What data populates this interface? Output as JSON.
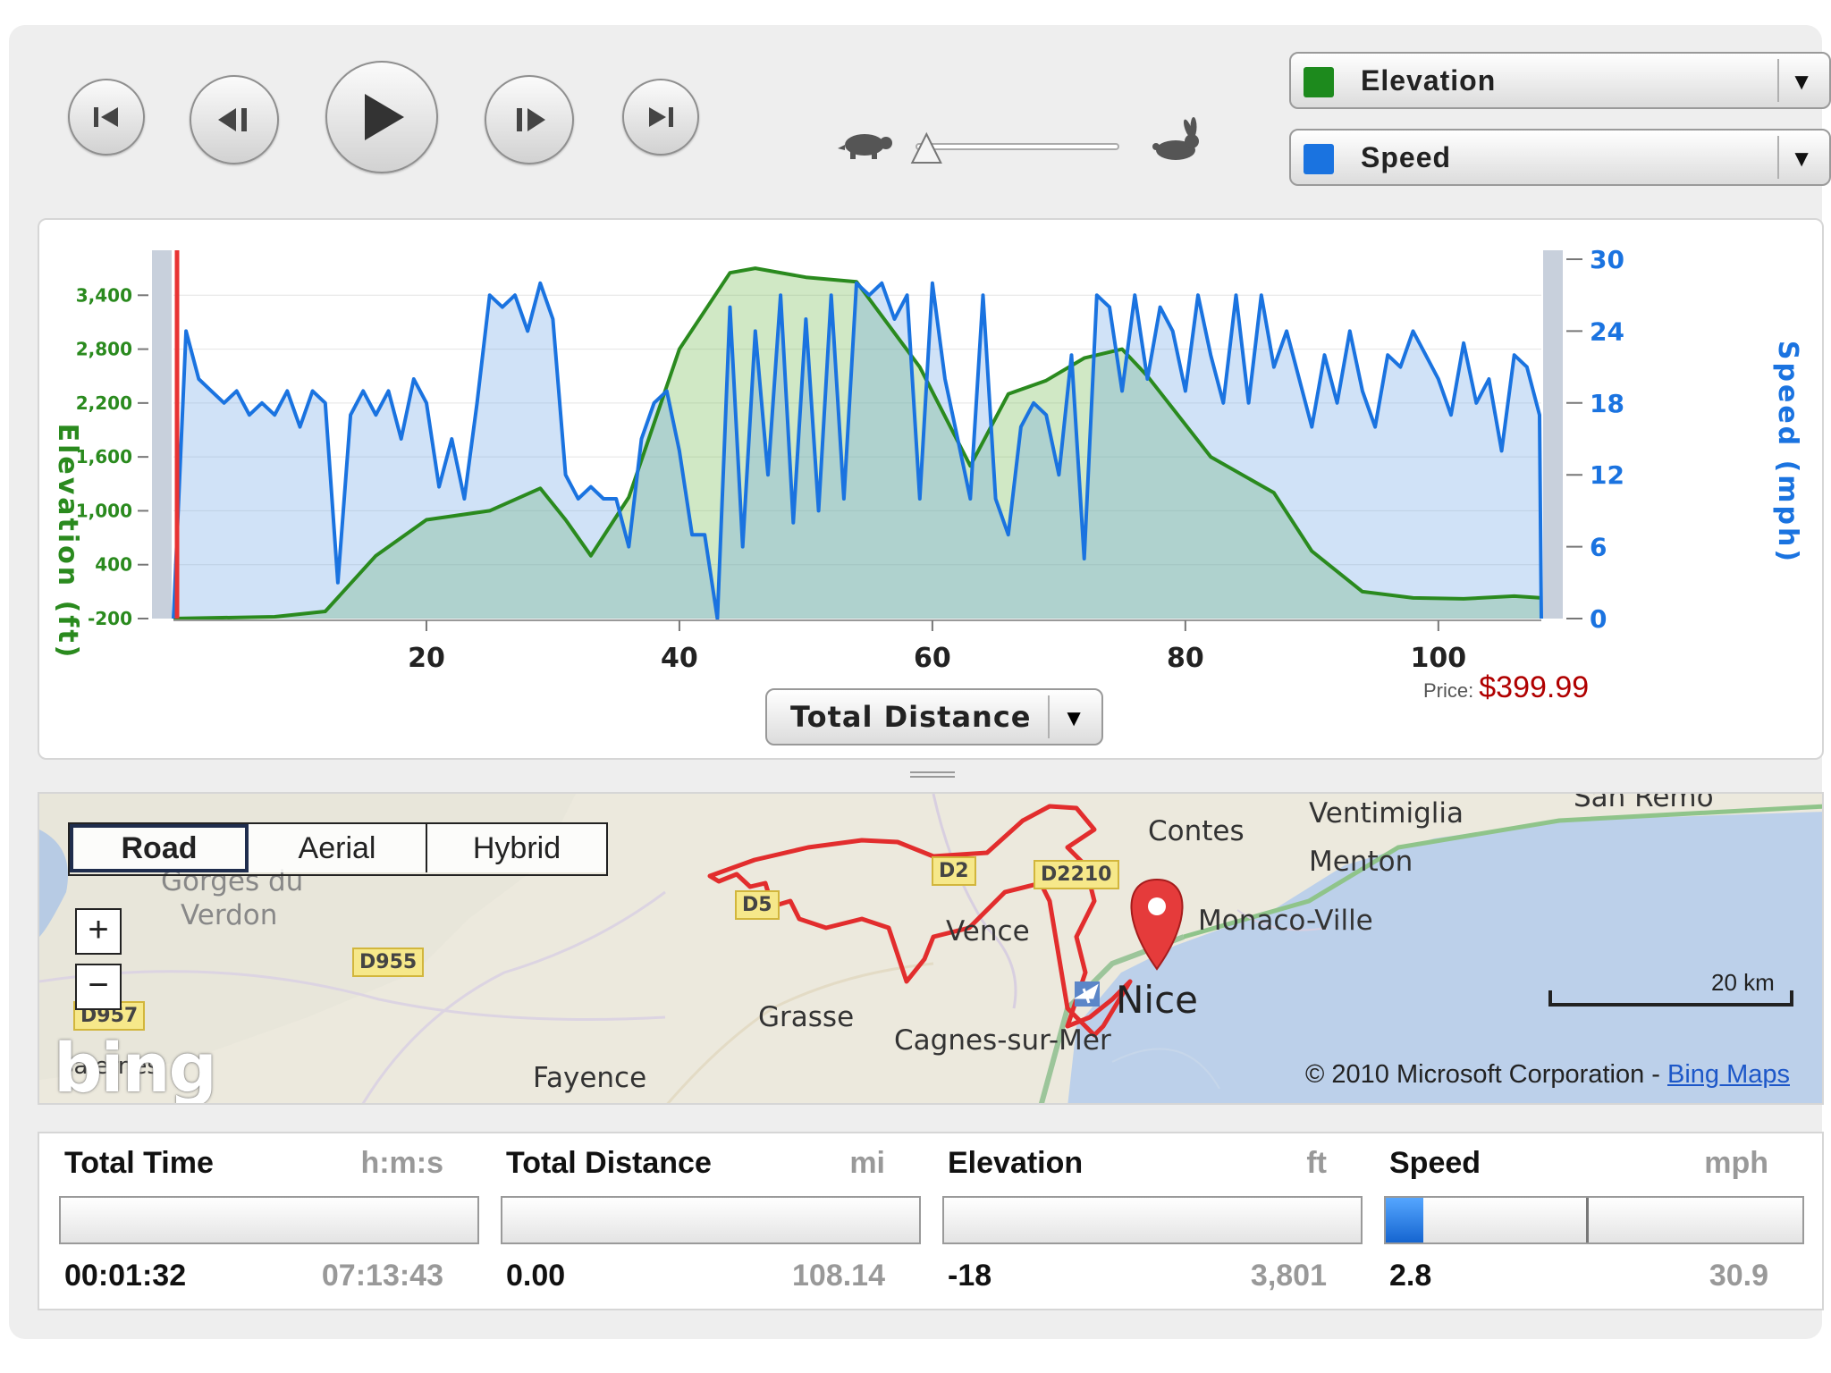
{
  "playback": {
    "buttons": [
      "skip-to-start",
      "step-back",
      "play",
      "step-forward",
      "skip-to-end"
    ],
    "slow_icon": "turtle-icon",
    "fast_icon": "rabbit-icon",
    "speed_level": 0.05
  },
  "series_selectors": [
    {
      "label": "Elevation",
      "color": "#1d8a1d"
    },
    {
      "label": "Speed",
      "color": "#1a73e0"
    }
  ],
  "chart_data": {
    "type": "area",
    "x_axis_label": "Total Distance",
    "x_ticks": [
      20,
      40,
      60,
      80,
      100
    ],
    "xlim": [
      0,
      108.14
    ],
    "left_axis": {
      "label": "Elevation (ft)",
      "ticks": [
        "3,400",
        "2,800",
        "2,200",
        "1,600",
        "1,000",
        "400",
        "-200"
      ],
      "range": [
        -200,
        3801
      ]
    },
    "right_axis": {
      "label": "Speed (mph)",
      "ticks": [
        "30",
        "24",
        "18",
        "12",
        "6",
        "0"
      ],
      "range": [
        0,
        30
      ]
    },
    "colors": {
      "elevation": "#2a8a1e",
      "speed": "#1a73e0",
      "cursor": "#e83333"
    },
    "cursor_x": 0,
    "series": [
      {
        "name": "Elevation",
        "x": [
          0,
          8,
          12,
          16,
          20,
          25,
          29,
          31,
          33,
          36,
          40,
          44,
          46,
          50,
          54,
          59,
          63,
          66,
          69,
          72,
          75,
          77,
          82,
          87,
          90,
          94,
          98,
          102,
          106,
          108.14
        ],
        "y": [
          -200,
          -180,
          -120,
          500,
          900,
          1000,
          1250,
          900,
          500,
          1150,
          2800,
          3650,
          3700,
          3600,
          3550,
          2600,
          1500,
          2300,
          2450,
          2700,
          2800,
          2500,
          1600,
          1200,
          550,
          100,
          30,
          20,
          50,
          30
        ]
      },
      {
        "name": "Speed",
        "x": [
          0,
          1,
          2,
          3,
          4,
          5,
          6,
          7,
          8,
          9,
          10,
          11,
          12,
          13,
          14,
          15,
          16,
          17,
          18,
          19,
          20,
          21,
          22,
          23,
          24,
          25,
          26,
          27,
          28,
          29,
          30,
          31,
          32,
          33,
          34,
          35,
          36,
          37,
          38,
          39,
          40,
          41,
          42,
          43,
          44,
          45,
          46,
          47,
          48,
          49,
          50,
          51,
          52,
          53,
          54,
          55,
          56,
          57,
          58,
          59,
          60,
          61,
          62,
          63,
          64,
          65,
          66,
          67,
          68,
          69,
          70,
          71,
          72,
          73,
          74,
          75,
          76,
          77,
          78,
          79,
          80,
          81,
          82,
          83,
          84,
          85,
          86,
          87,
          88,
          89,
          90,
          91,
          92,
          93,
          94,
          95,
          96,
          97,
          98,
          99,
          100,
          101,
          102,
          103,
          104,
          105,
          106,
          107,
          108,
          108.14
        ],
        "y": [
          0,
          24,
          20,
          19,
          18,
          19,
          17,
          18,
          17,
          19,
          16,
          19,
          18,
          3,
          17,
          19,
          17,
          19,
          15,
          20,
          18,
          11,
          15,
          10,
          18,
          27,
          26,
          27,
          24,
          28,
          25,
          12,
          10,
          11,
          10,
          10,
          6,
          15,
          18,
          19,
          14,
          7,
          7,
          0,
          26,
          6,
          24,
          12,
          27,
          8,
          25,
          9,
          27,
          10,
          28,
          27,
          28,
          25,
          27,
          10,
          28,
          20,
          15,
          10,
          27,
          10,
          7,
          16,
          18,
          17,
          12,
          22,
          5,
          27,
          26,
          19,
          27,
          20,
          26,
          24,
          19,
          27,
          22,
          18,
          27,
          18,
          27,
          21,
          24,
          20,
          16,
          22,
          18,
          24,
          19,
          16,
          22,
          21,
          24,
          22,
          20,
          17,
          23,
          18,
          20,
          14,
          22,
          21,
          17,
          0
        ]
      }
    ]
  },
  "xaxis_selector": {
    "label": "Total Distance"
  },
  "price": {
    "label": "Price:",
    "value": "$399.99"
  },
  "map": {
    "types": [
      "Road",
      "Aerial",
      "Hybrid"
    ],
    "active_type": "Road",
    "labels": {
      "gorges": "Gorges du",
      "verdon": "Verdon",
      "salernes": "Salernes",
      "fayence": "Fayence",
      "grasse": "Grasse",
      "vence": "Vence",
      "cagnes": "Cagnes-sur-Mer",
      "nice": "Nice",
      "contes": "Contes",
      "monaco": "Monaco-Ville",
      "menton": "Menton",
      "ventimiglia": "Ventimiglia",
      "sanremo": "San Remo"
    },
    "roads": {
      "d955": "D955",
      "d957": "D957",
      "d5": "D5",
      "d2": "D2",
      "d2210": "D2210"
    },
    "scale": "20 km",
    "logo": "bing",
    "copyright": "© 2010 Microsoft Corporation - ",
    "copyright_link": "Bing Maps"
  },
  "stats": [
    {
      "title": "Total Time",
      "unit": "h:m:s",
      "current": "00:01:32",
      "max": "07:13:43",
      "fill": 0
    },
    {
      "title": "Total Distance",
      "unit": "mi",
      "current": "0.00",
      "max": "108.14",
      "fill": 0
    },
    {
      "title": "Elevation",
      "unit": "ft",
      "current": "-18",
      "max": "3,801",
      "fill": 0
    },
    {
      "title": "Speed",
      "unit": "mph",
      "current": "2.8",
      "max": "30.9",
      "fill": 0.09,
      "marker": 0.48
    }
  ]
}
